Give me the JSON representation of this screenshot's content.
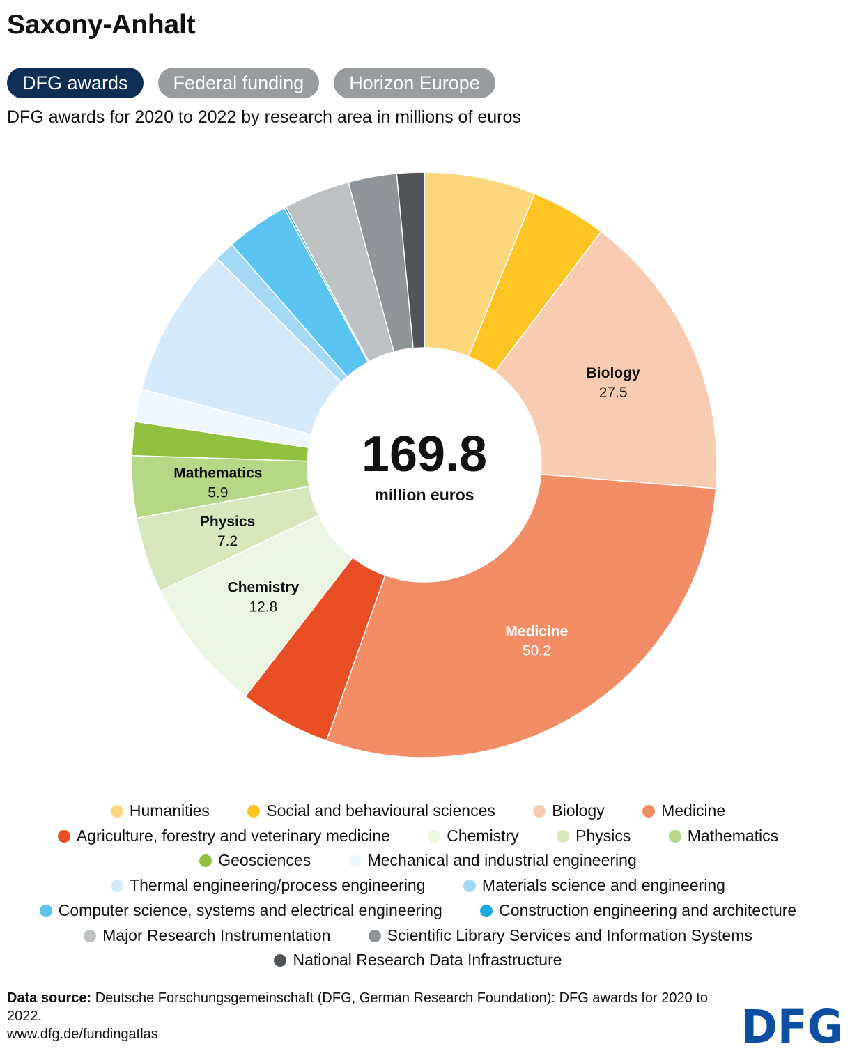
{
  "title": "Saxony-Anhalt",
  "tabs": [
    {
      "label": "DFG awards",
      "active": true
    },
    {
      "label": "Federal funding",
      "active": false
    },
    {
      "label": "Horizon Europe",
      "active": false
    }
  ],
  "subtitle": "DFG awards for 2020 to 2022 by research area in millions of euros",
  "center": {
    "value": "169.8",
    "unit": "million euros"
  },
  "chart_data": {
    "type": "pie",
    "donut": true,
    "total": 169.8,
    "slices": [
      {
        "name": "Humanities",
        "value": 10.6,
        "color": "#fed67e"
      },
      {
        "name": "Social and behavioural sciences",
        "value": 7.2,
        "color": "#fcc523"
      },
      {
        "name": "Biology",
        "value": 27.5,
        "color": "#f9ccb1",
        "label": "Biology",
        "value_label": "27.5"
      },
      {
        "name": "Medicine",
        "value": 50.2,
        "color": "#f28d65",
        "label": "Medicine",
        "value_label": "50.2",
        "light_text": true
      },
      {
        "name": "Agriculture, forestry and veterinary medicine",
        "value": 8.7,
        "color": "#e94e24"
      },
      {
        "name": "Chemistry",
        "value": 12.8,
        "color": "#ecf5e2",
        "label": "Chemistry",
        "value_label": "12.8"
      },
      {
        "name": "Physics",
        "value": 7.2,
        "color": "#d7e8bd",
        "label": "Physics",
        "value_label": "7.2"
      },
      {
        "name": "Mathematics",
        "value": 5.9,
        "color": "#b5d886",
        "label": "Mathematics",
        "value_label": "5.9"
      },
      {
        "name": "Geosciences",
        "value": 3.2,
        "color": "#91c13e"
      },
      {
        "name": "Mechanical and industrial engineering",
        "value": 3.1,
        "color": "#eef6fe"
      },
      {
        "name": "Thermal engineering/process engineering",
        "value": 14.3,
        "color": "#d5ebfb"
      },
      {
        "name": "Materials science and engineering",
        "value": 1.9,
        "color": "#a4d8f8"
      },
      {
        "name": "Computer science, systems and electrical engineering",
        "value": 6.0,
        "color": "#5bc4f1"
      },
      {
        "name": "Construction engineering and architecture",
        "value": 0.2,
        "color": "#1ba9e1"
      },
      {
        "name": "Major Research Instrumentation",
        "value": 6.3,
        "color": "#bdc1c3"
      },
      {
        "name": "Scientific Library Services and Information Systems",
        "value": 4.6,
        "color": "#8e9498"
      },
      {
        "name": "National Research Data Infrastructure",
        "value": 2.6,
        "color": "#505456"
      }
    ]
  },
  "legend": [
    {
      "label": "Humanities",
      "color": "#fed67e"
    },
    {
      "label": "Social and behavioural sciences",
      "color": "#fcc523"
    },
    {
      "label": "Biology",
      "color": "#f9ccb1"
    },
    {
      "label": "Medicine",
      "color": "#f28d65"
    },
    {
      "label": "Agriculture, forestry and veterinary medicine",
      "color": "#e94e24"
    },
    {
      "label": "Chemistry",
      "color": "#ecf5e2"
    },
    {
      "label": "Physics",
      "color": "#d7e8bd"
    },
    {
      "label": "Mathematics",
      "color": "#b5d886"
    },
    {
      "label": "Geosciences",
      "color": "#91c13e"
    },
    {
      "label": "Mechanical and industrial engineering",
      "color": "#eef6fe"
    },
    {
      "label": "Thermal engineering/process engineering",
      "color": "#d5ebfb"
    },
    {
      "label": "Materials science and engineering",
      "color": "#a4d8f8"
    },
    {
      "label": "Computer science, systems and electrical engineering",
      "color": "#5bc4f1"
    },
    {
      "label": "Construction engineering and architecture",
      "color": "#1ba9e1"
    },
    {
      "label": "Major Research Instrumentation",
      "color": "#bdc1c3"
    },
    {
      "label": "Scientific Library Services and Information Systems",
      "color": "#8e9498"
    },
    {
      "label": "National Research Data Infrastructure",
      "color": "#505456"
    }
  ],
  "source": {
    "label": "Data source:",
    "text": "Deutsche Forschungsgemeinschaft (DFG, German Research Foundation): DFG awards for 2020 to 2022.",
    "url": "www.dfg.de/fundingatlas"
  },
  "logo": {
    "text": "DFG",
    "color": "#0b4ea2"
  }
}
